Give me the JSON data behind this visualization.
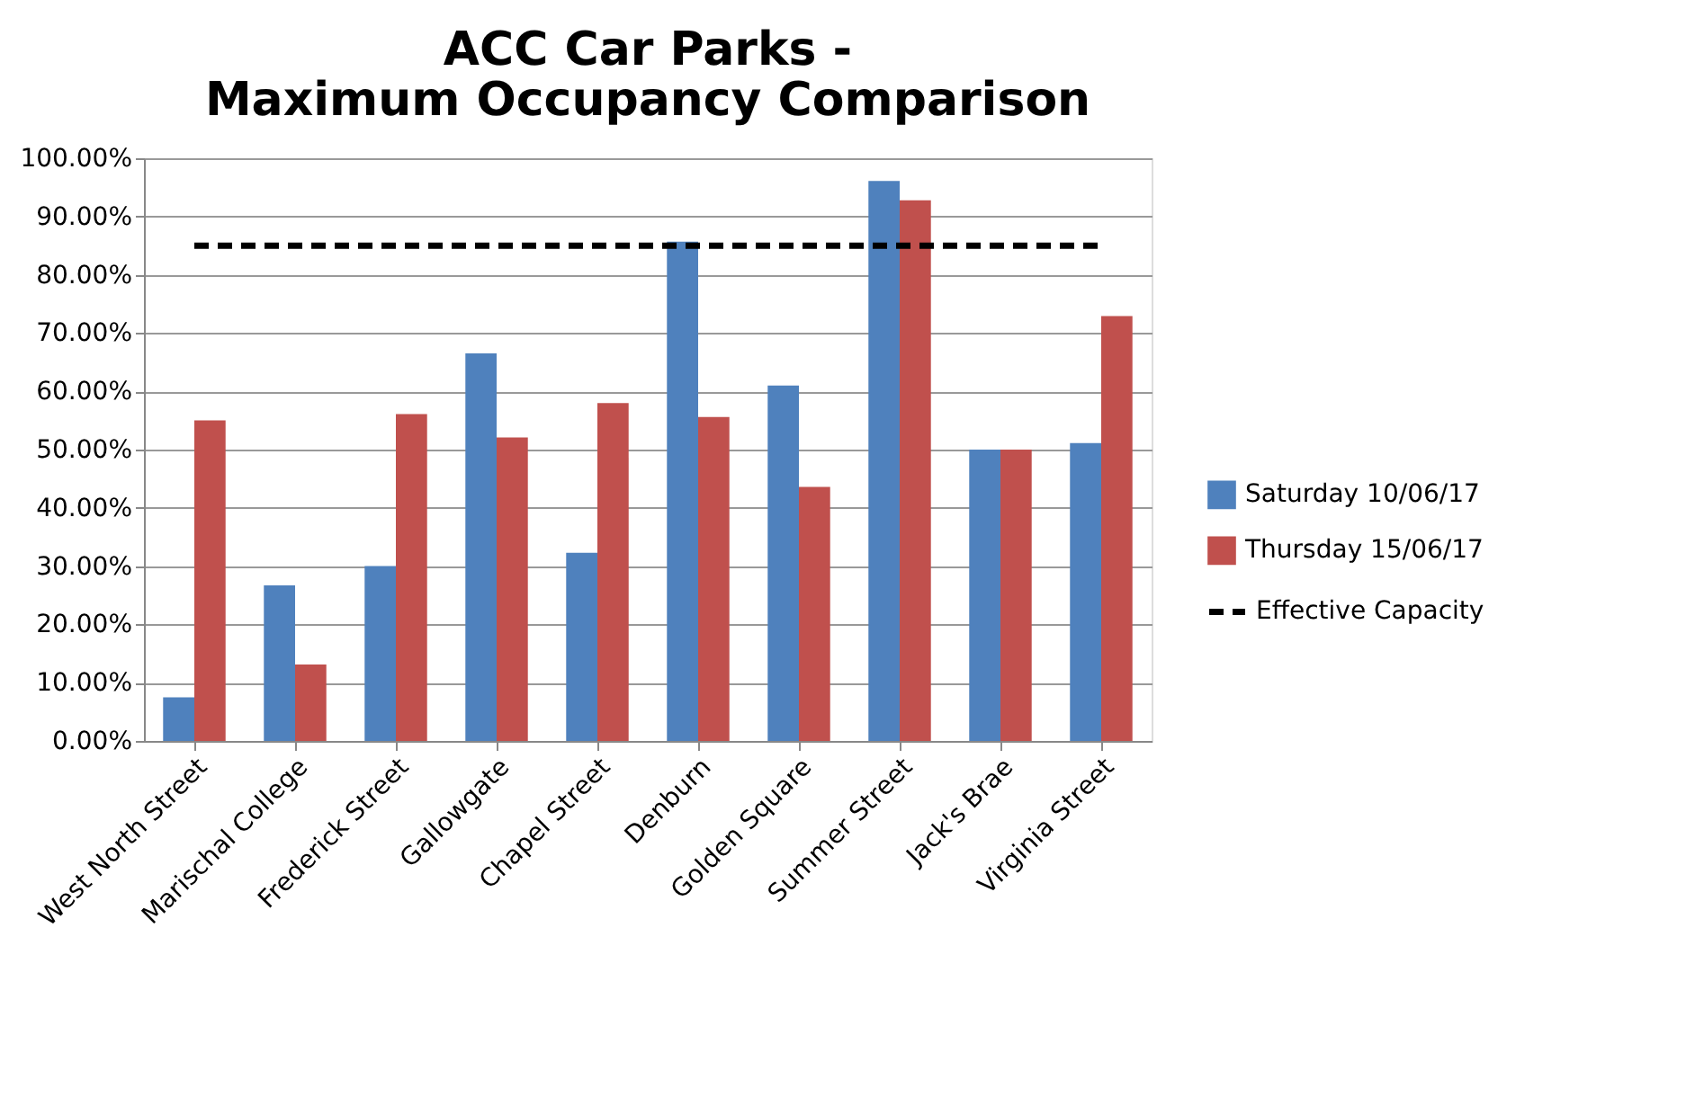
{
  "chart_data": {
    "type": "bar",
    "title": "ACC Car Parks -\nMaximum Occupancy Comparison",
    "categories": [
      "West North Street",
      "Marischal College",
      "Frederick Street",
      "Gallowgate",
      "Chapel Street",
      "Denburn",
      "Golden Square",
      "Summer Street",
      "Jack's Brae",
      "Virginia Street"
    ],
    "series": [
      {
        "name": "Saturday 10/06/17",
        "color": "#4f81bd",
        "values": [
          7.5,
          26.7,
          30.0,
          66.5,
          32.3,
          85.7,
          61.0,
          96.1,
          50.0,
          51.1
        ]
      },
      {
        "name": "Thursday 15/06/17",
        "color": "#c0504d",
        "values": [
          55.0,
          13.1,
          56.1,
          52.1,
          58.0,
          55.6,
          43.6,
          92.8,
          50.0,
          72.9
        ]
      },
      {
        "name": "Effective Capacity",
        "type": "line",
        "color": "#000000",
        "line_style": "dashed",
        "values": [
          85,
          85,
          85,
          85,
          85,
          85,
          85,
          85,
          85,
          85
        ]
      }
    ],
    "ylim": [
      0,
      100
    ],
    "yticks": [
      {
        "value": 0,
        "label": "0.00%"
      },
      {
        "value": 10,
        "label": "10.00%"
      },
      {
        "value": 20,
        "label": "20.00%"
      },
      {
        "value": 30,
        "label": "30.00%"
      },
      {
        "value": 40,
        "label": "40.00%"
      },
      {
        "value": 50,
        "label": "50.00%"
      },
      {
        "value": 60,
        "label": "60.00%"
      },
      {
        "value": 70,
        "label": "70.00%"
      },
      {
        "value": 80,
        "label": "80.00%"
      },
      {
        "value": 90,
        "label": "90.00%"
      },
      {
        "value": 100,
        "label": "100.00%"
      }
    ],
    "grid": "y",
    "legend": "right",
    "marker": "none"
  }
}
